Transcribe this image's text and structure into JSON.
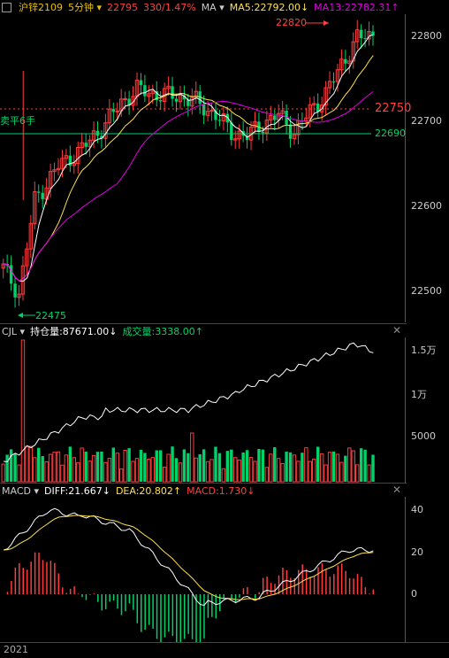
{
  "header": {
    "symbol": "沪锌2109",
    "period": "5分钟",
    "price": "22795",
    "change": "330/1.47%",
    "ma_label": "MA",
    "ma5": "MA5:22792.00↓",
    "ma13": "MA13:22782.31↑"
  },
  "price_axis": [
    "22800",
    "22700",
    "22600",
    "22500"
  ],
  "markers": {
    "high": "22820",
    "low": "22475",
    "line_red": "22750",
    "line_green": "22690",
    "sell_label": "卖平6手"
  },
  "volume_panel": {
    "name": "CJL",
    "oi": "持仓量:87671.00↓",
    "vol": "成交量:3338.00↑",
    "axis": [
      "1.5万",
      "1万",
      "5000"
    ]
  },
  "macd_panel": {
    "name": "MACD",
    "diff": "DIFF:21.667↓",
    "dea": "DEA:20.802↑",
    "macd": "MACD:1.730↓",
    "axis": [
      "40",
      "20",
      "0"
    ]
  },
  "footer": {
    "year": "2021"
  },
  "colors": {
    "up": "#ff3b3b",
    "down": "#00d26a",
    "ma5": "#ffffff",
    "ma13": "#ffe14d",
    "ma_magenta": "#e000e0",
    "price": "#ff4040",
    "gold": "#e8c000"
  }
}
